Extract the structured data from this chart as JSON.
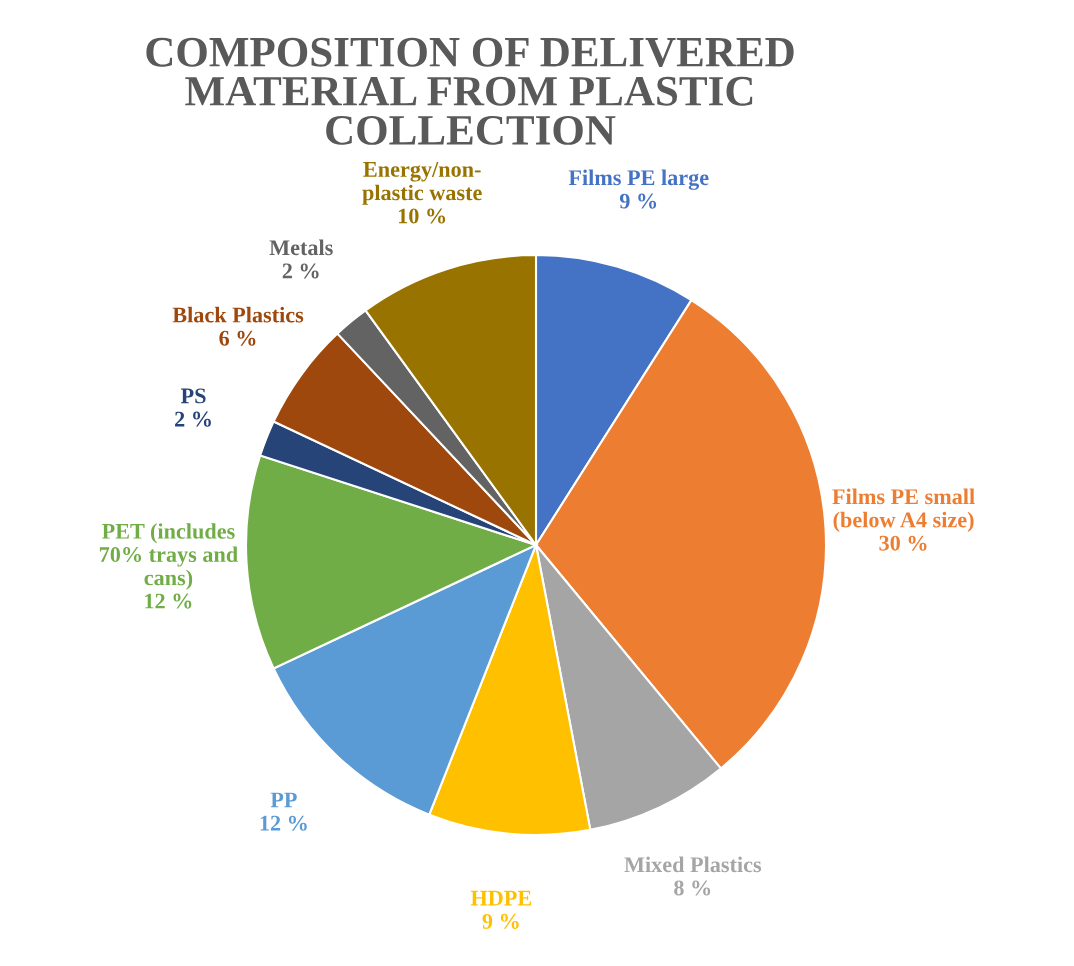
{
  "chart_data": {
    "type": "pie",
    "title": "COMPOSITION OF DELIVERED\nMATERIAL FROM PLASTIC\nCOLLECTION",
    "categories": [
      "Films PE large",
      "Films PE small\n(below A4 size)",
      "Mixed Plastics",
      "HDPE",
      "PP",
      "PET (includes\n70% trays and\ncans)",
      "PS",
      "Black Plastics",
      "Metals",
      "Energy/non-\nplastic waste"
    ],
    "values": [
      9,
      30,
      8,
      9,
      12,
      12,
      2,
      6,
      2,
      10
    ],
    "value_labels": [
      "9 %",
      "30 %",
      "8 %",
      "9 %",
      "12 %",
      "12 %",
      "2 %",
      "6 %",
      "2 %",
      "10 %"
    ],
    "colors": [
      "#4472c4",
      "#ed7d31",
      "#a5a5a5",
      "#ffc000",
      "#5b9bd5",
      "#70ad47",
      "#264478",
      "#9e480e",
      "#636363",
      "#997300"
    ]
  }
}
